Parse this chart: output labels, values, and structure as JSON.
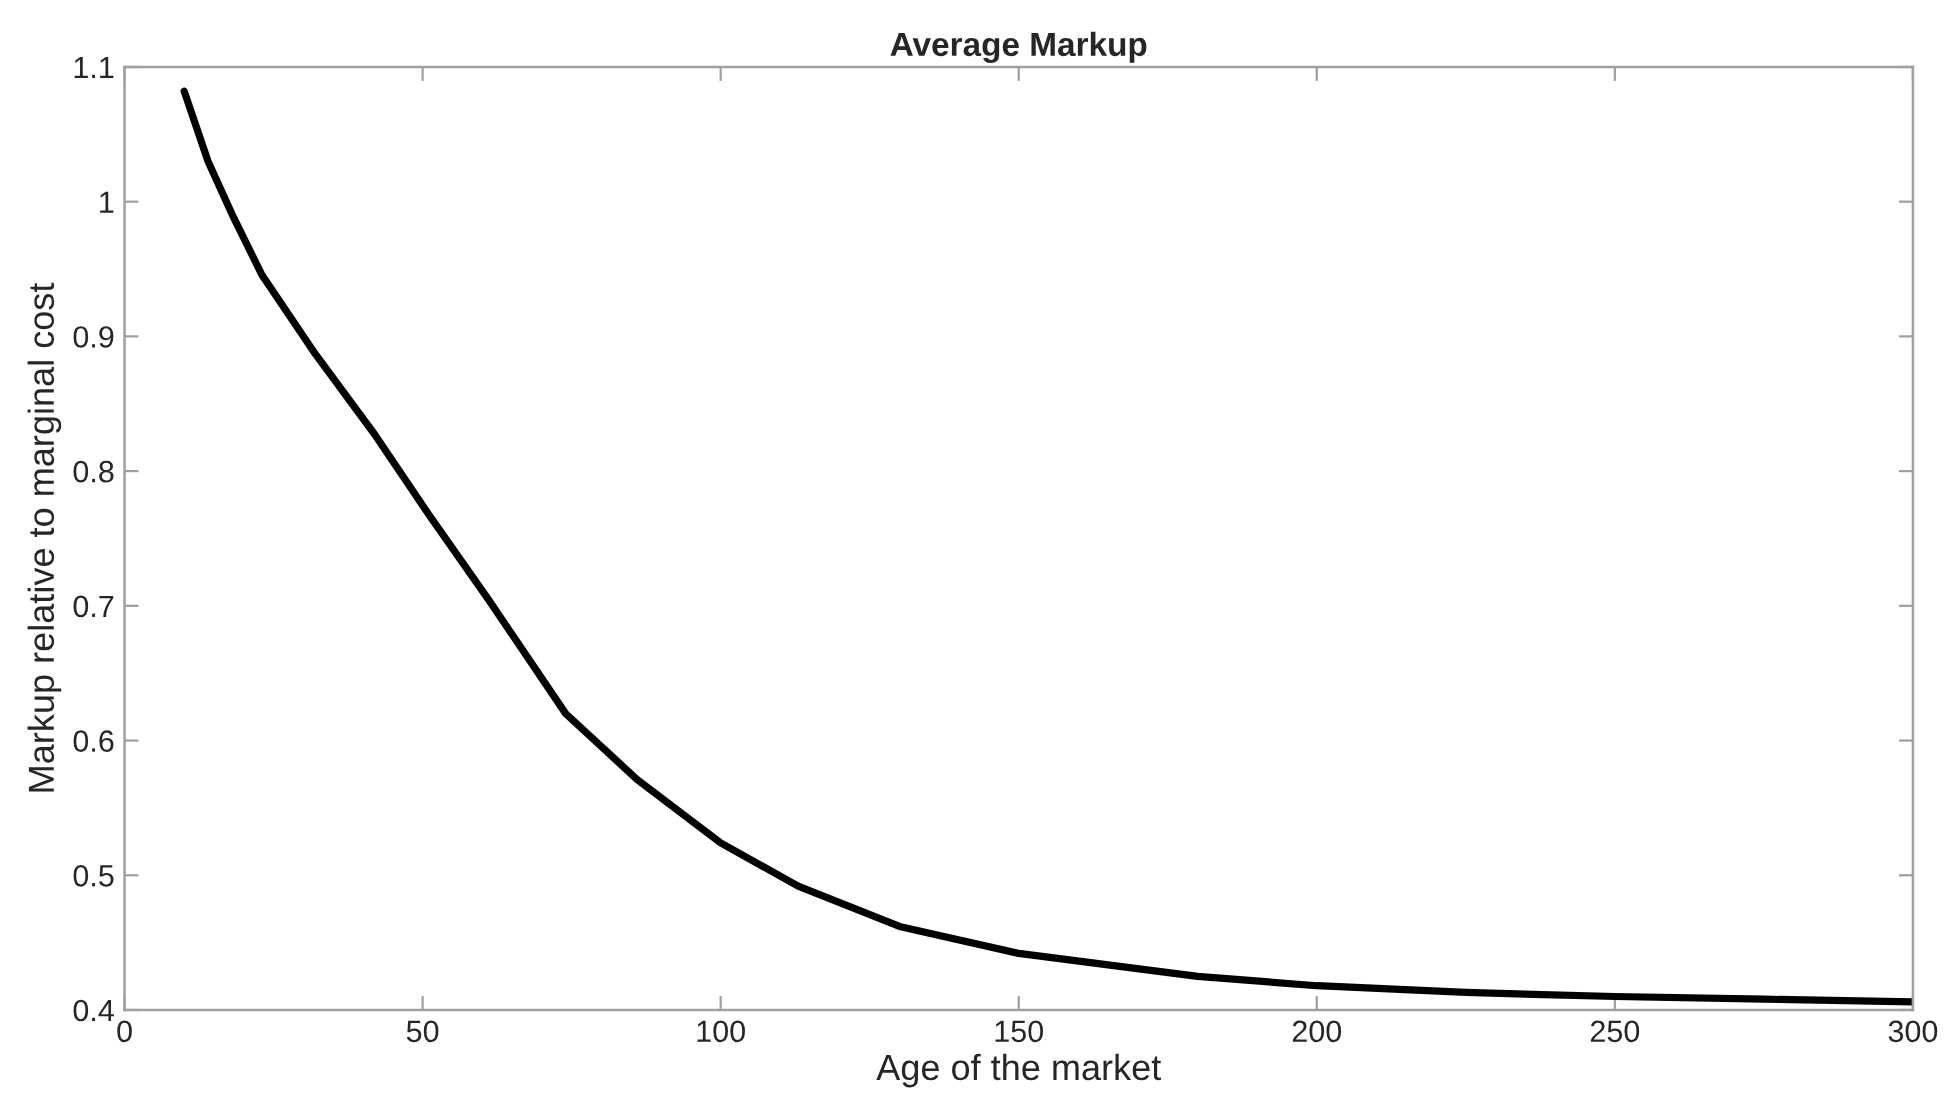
{
  "chart_data": {
    "type": "line",
    "title": "Average Markup",
    "xlabel": "Age of the market",
    "ylabel": "Markup relative to marginal cost",
    "series": [
      {
        "color": "#000000",
        "x": [
          10,
          14,
          18,
          23,
          32,
          42,
          51,
          61,
          74,
          86,
          100,
          113,
          130,
          150,
          180,
          200,
          225,
          250,
          275,
          300
        ],
        "values": [
          1.082,
          1.03,
          0.991,
          0.946,
          0.887,
          0.827,
          0.768,
          0.705,
          0.62,
          0.571,
          0.524,
          0.492,
          0.462,
          0.442,
          0.425,
          0.418,
          0.413,
          0.41,
          0.408,
          0.406
        ]
      }
    ],
    "xlim": [
      0,
      300
    ],
    "xticks": [
      0,
      50,
      100,
      150,
      200,
      250,
      300
    ],
    "ylim": [
      0.4,
      1.1
    ],
    "yticks": [
      0.4,
      0.5,
      0.6,
      0.7,
      0.8,
      0.9,
      1,
      1.1
    ],
    "grid": false,
    "legend": false,
    "marker": "none",
    "line_style": "solid"
  }
}
